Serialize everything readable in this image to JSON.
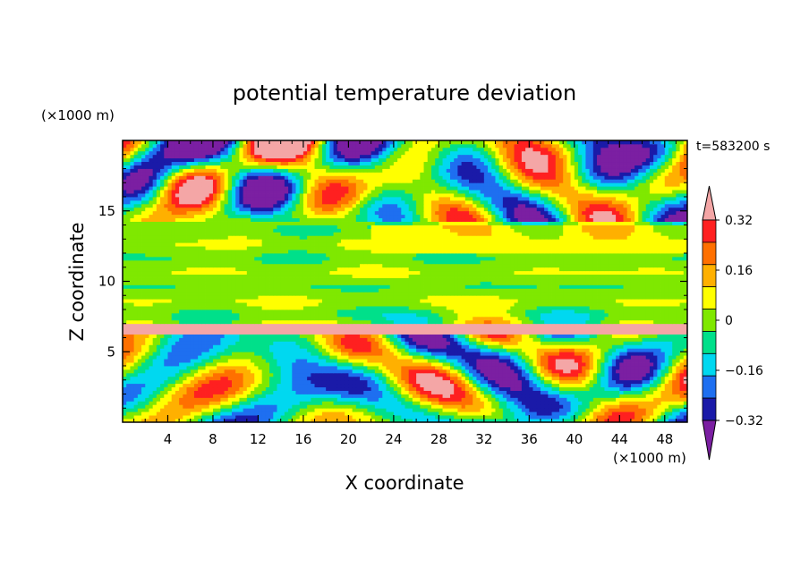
{
  "chart_data": {
    "type": "heatmap",
    "title": "potential temperature deviation",
    "xlabel": "X coordinate",
    "ylabel": "Z coordinate",
    "x_unit": "(×1000 m)",
    "y_unit": "(×1000 m)",
    "time_label": "t=583200 s",
    "xlim": [
      0,
      50
    ],
    "ylim": [
      0,
      20
    ],
    "x_ticks": [
      4,
      8,
      12,
      16,
      20,
      24,
      28,
      32,
      36,
      40,
      44,
      48
    ],
    "y_ticks": [
      5,
      10,
      15
    ],
    "colorbar": {
      "levels": [
        -0.4,
        -0.32,
        -0.24,
        -0.16,
        -0.08,
        0,
        0.08,
        0.16,
        0.24,
        0.32,
        0.4
      ],
      "tick_labels": [
        "0.32",
        "0.16",
        "0",
        "−0.16",
        "−0.32"
      ],
      "tick_values": [
        0.32,
        0.16,
        0,
        -0.16,
        -0.32
      ],
      "colors": [
        "#7b1fa2",
        "#1a1aa8",
        "#1e6ff0",
        "#00d8f0",
        "#00e08a",
        "#7fe800",
        "#ffff00",
        "#ffb000",
        "#ff7000",
        "#ff2020",
        "#f4a6a6"
      ],
      "extend": "both"
    },
    "field_description_regions": [
      {
        "z_range": [
          0,
          6
        ],
        "pattern": "mixed warm/cold eddies"
      },
      {
        "z_range": [
          6.5,
          7
        ],
        "pattern": "warm band"
      },
      {
        "z_range": [
          7,
          14
        ],
        "pattern": "near-zero neutral layer"
      },
      {
        "z_range": [
          14,
          20
        ],
        "pattern": "mixed strong deviations"
      }
    ]
  }
}
